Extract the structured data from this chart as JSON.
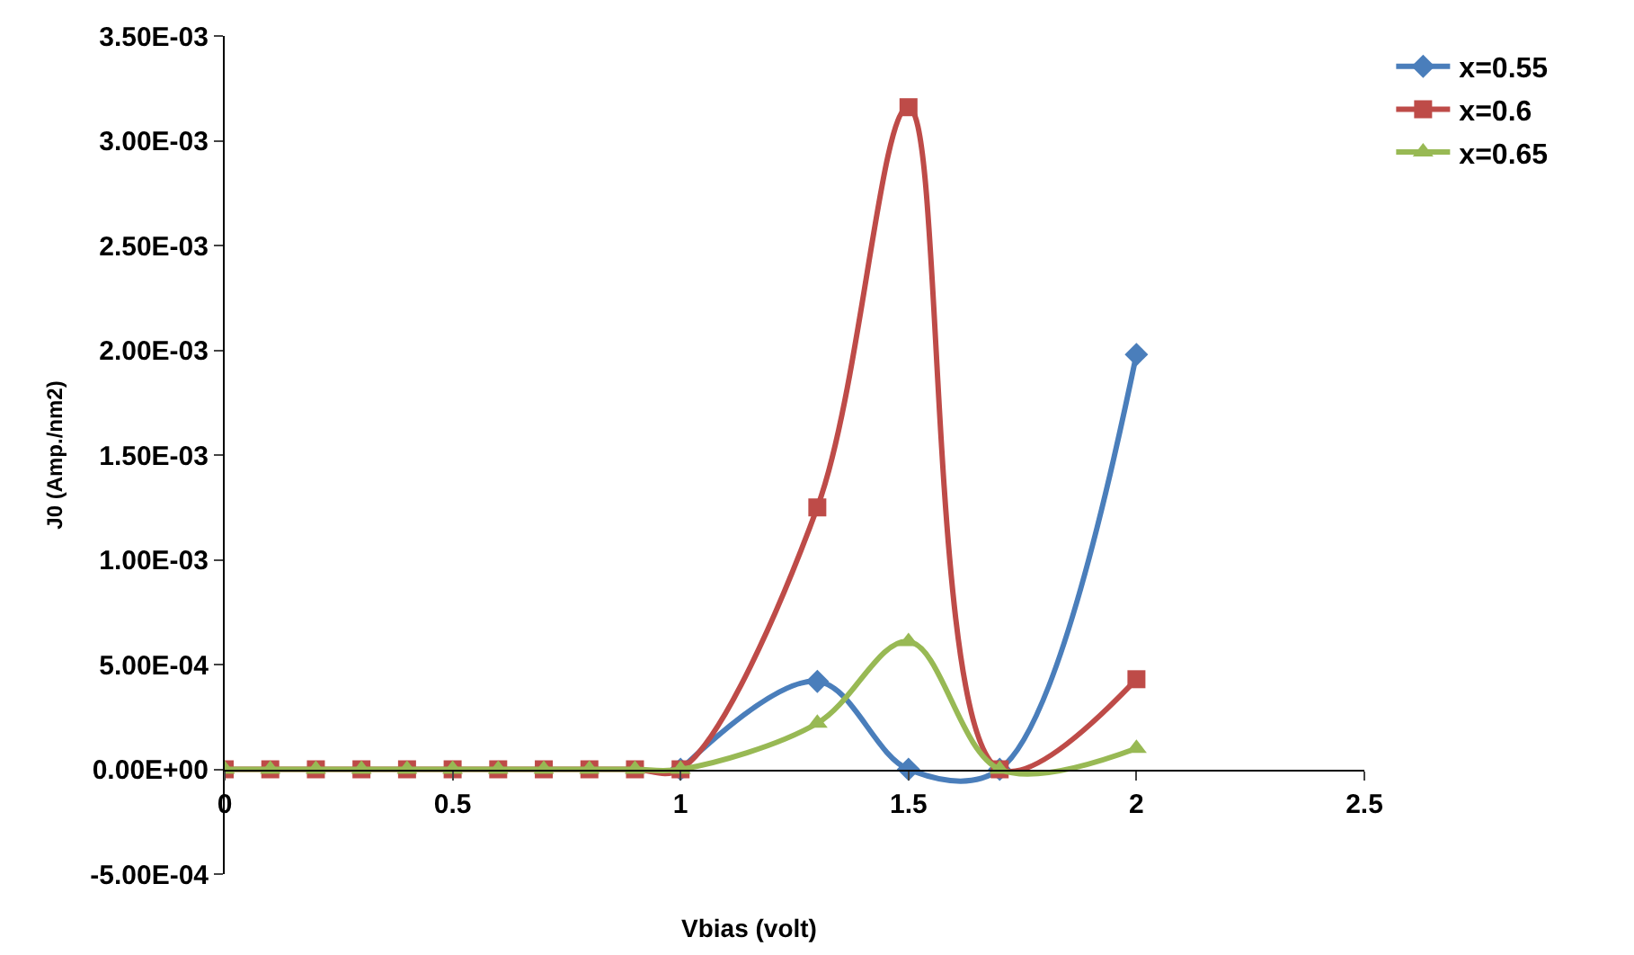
{
  "chart_data": {
    "type": "line",
    "xlabel": "Vbias (volt)",
    "ylabel": "J0 (Amp./nm2)",
    "x": [
      0,
      0.1,
      0.2,
      0.3,
      0.4,
      0.5,
      0.6,
      0.7,
      0.8,
      0.9,
      1,
      1.3,
      1.5,
      1.7,
      2
    ],
    "series": [
      {
        "name": "x=0.55",
        "color": "#4a7ebb",
        "marker": "diamond",
        "values": [
          null,
          null,
          null,
          null,
          null,
          null,
          null,
          null,
          null,
          null,
          0,
          0.00042,
          0,
          0,
          0.00198
        ]
      },
      {
        "name": "x=0.6",
        "color": "#be4b48",
        "marker": "square",
        "values": [
          0,
          0,
          0,
          0,
          0,
          0,
          0,
          0,
          0,
          0,
          0,
          0.00125,
          0.00316,
          0,
          0.00043
        ]
      },
      {
        "name": "x=0.65",
        "color": "#98b954",
        "marker": "triangle",
        "values": [
          0,
          0,
          0,
          0,
          0,
          0,
          0,
          0,
          0,
          0,
          0,
          0.00022,
          0.00061,
          0,
          0.0001
        ]
      }
    ],
    "xlim": [
      0,
      2.5
    ],
    "xticks": [
      0,
      0.5,
      1,
      1.5,
      2,
      2.5
    ],
    "ylim": [
      -0.0005,
      0.0035
    ],
    "yticks": [
      {
        "value": -0.0005,
        "label": "-5.00E-04"
      },
      {
        "value": 0,
        "label": "0.00E+00"
      },
      {
        "value": 0.0005,
        "label": "5.00E-04"
      },
      {
        "value": 0.001,
        "label": "1.00E-03"
      },
      {
        "value": 0.0015,
        "label": "1.50E-03"
      },
      {
        "value": 0.002,
        "label": "2.00E-03"
      },
      {
        "value": 0.0025,
        "label": "2.50E-03"
      },
      {
        "value": 0.003,
        "label": "3.00E-03"
      },
      {
        "value": 0.0035,
        "label": "3.50E-03"
      }
    ],
    "grid": false,
    "legend": "top right",
    "line_style": "solid"
  }
}
